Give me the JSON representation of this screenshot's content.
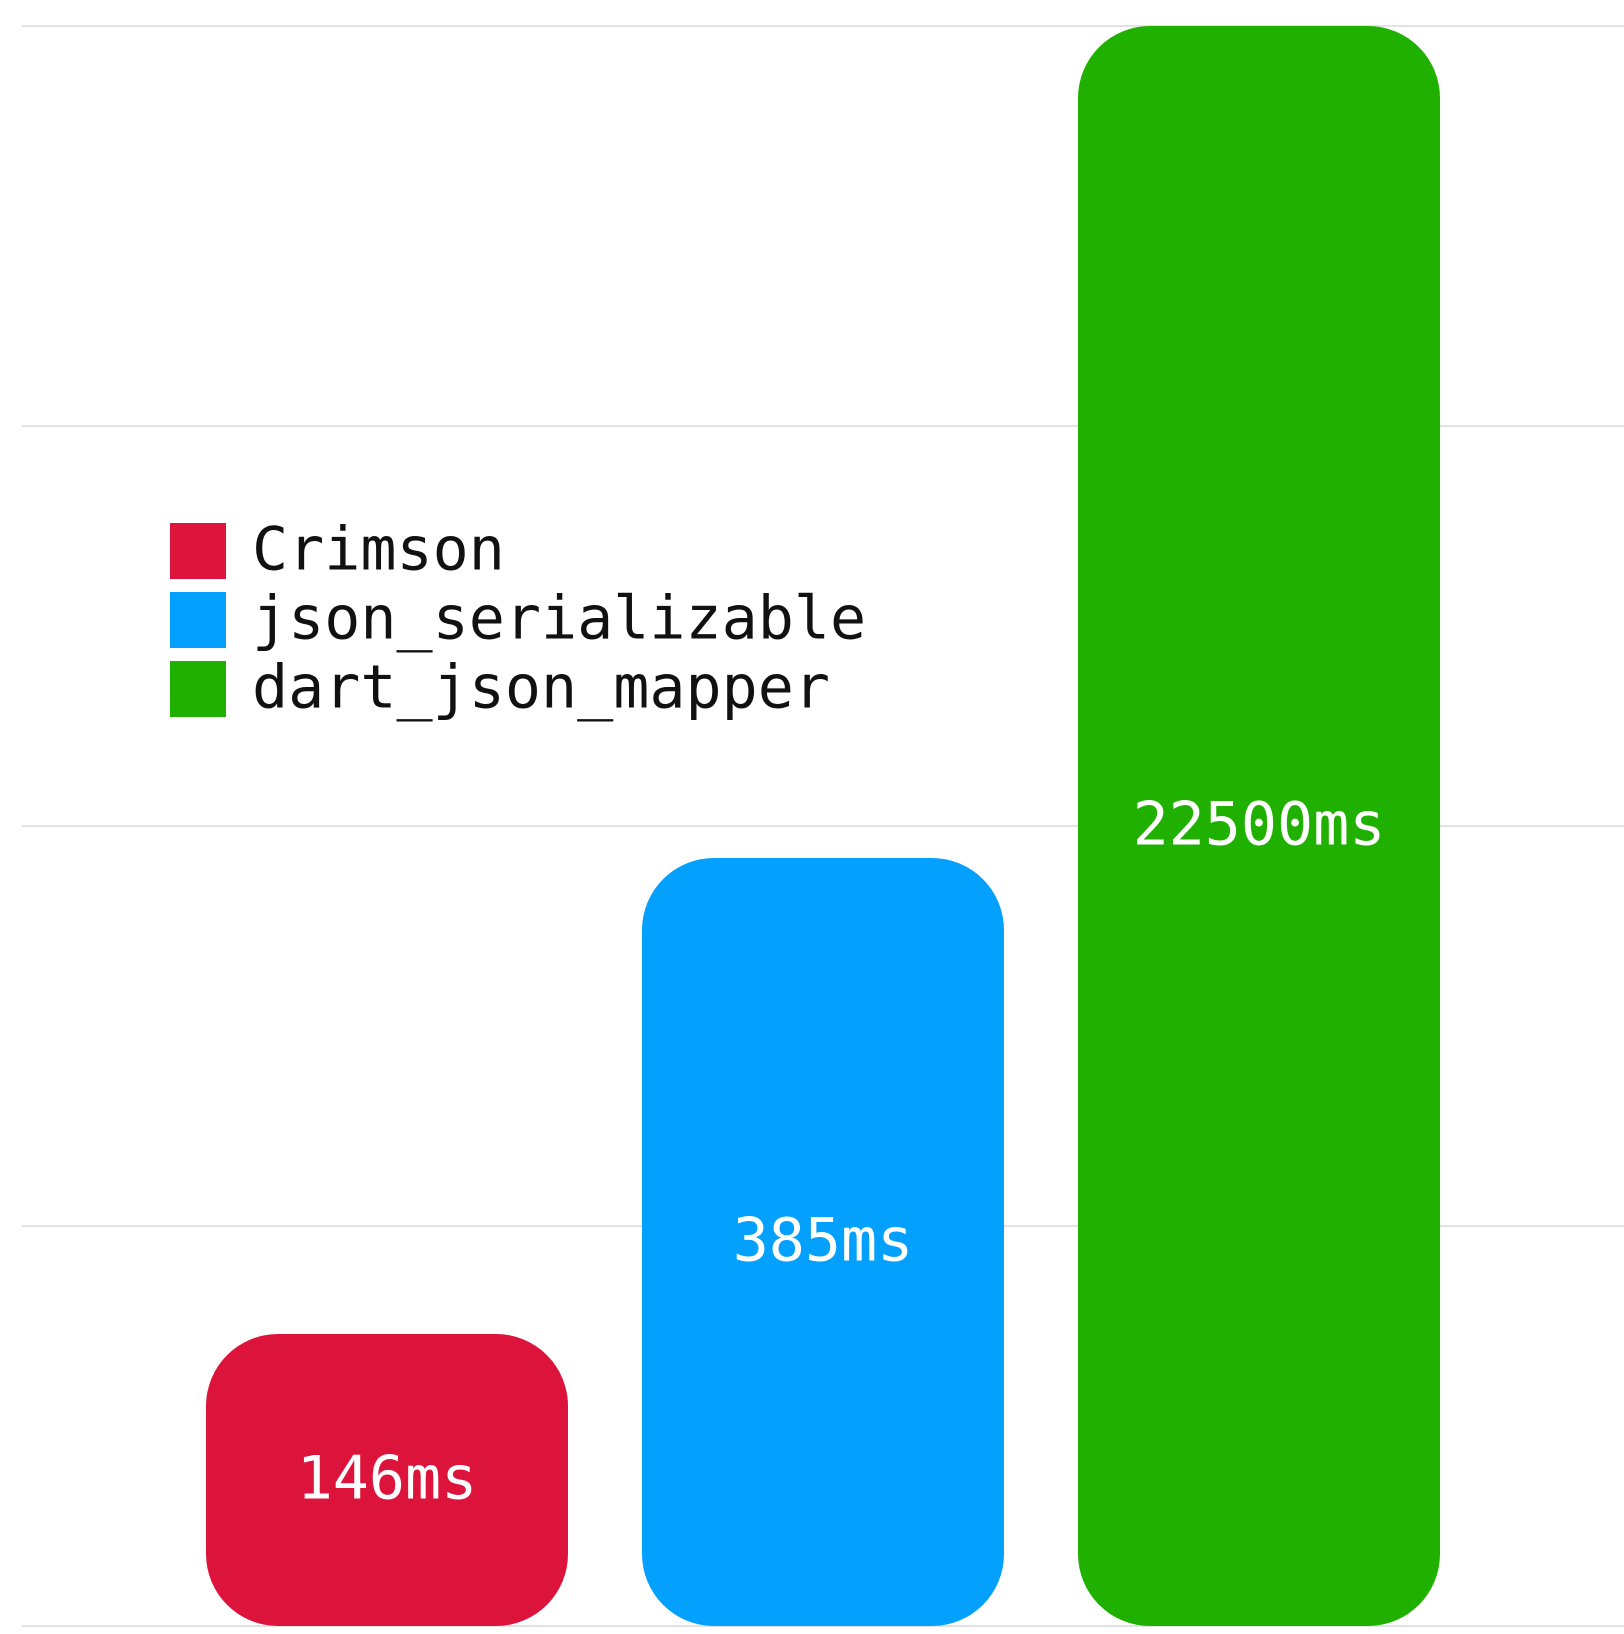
{
  "chart_data": {
    "type": "bar",
    "categories": [
      "Crimson",
      "json_serializable",
      "dart_json_mapper"
    ],
    "values": [
      146,
      385,
      22500
    ],
    "value_labels": [
      "146ms",
      "385ms",
      "22500ms"
    ],
    "unit": "ms",
    "scale_note": "bar heights are not proportional to the values",
    "colors": [
      "#dc143c",
      "#03a0fe",
      "#20b000"
    ],
    "legend": {
      "placement": "left-middle",
      "entries": [
        "Crimson",
        "json_serializable",
        "dart_json_mapper"
      ]
    },
    "grid": true,
    "title": "",
    "xlabel": "",
    "ylabel": ""
  }
}
